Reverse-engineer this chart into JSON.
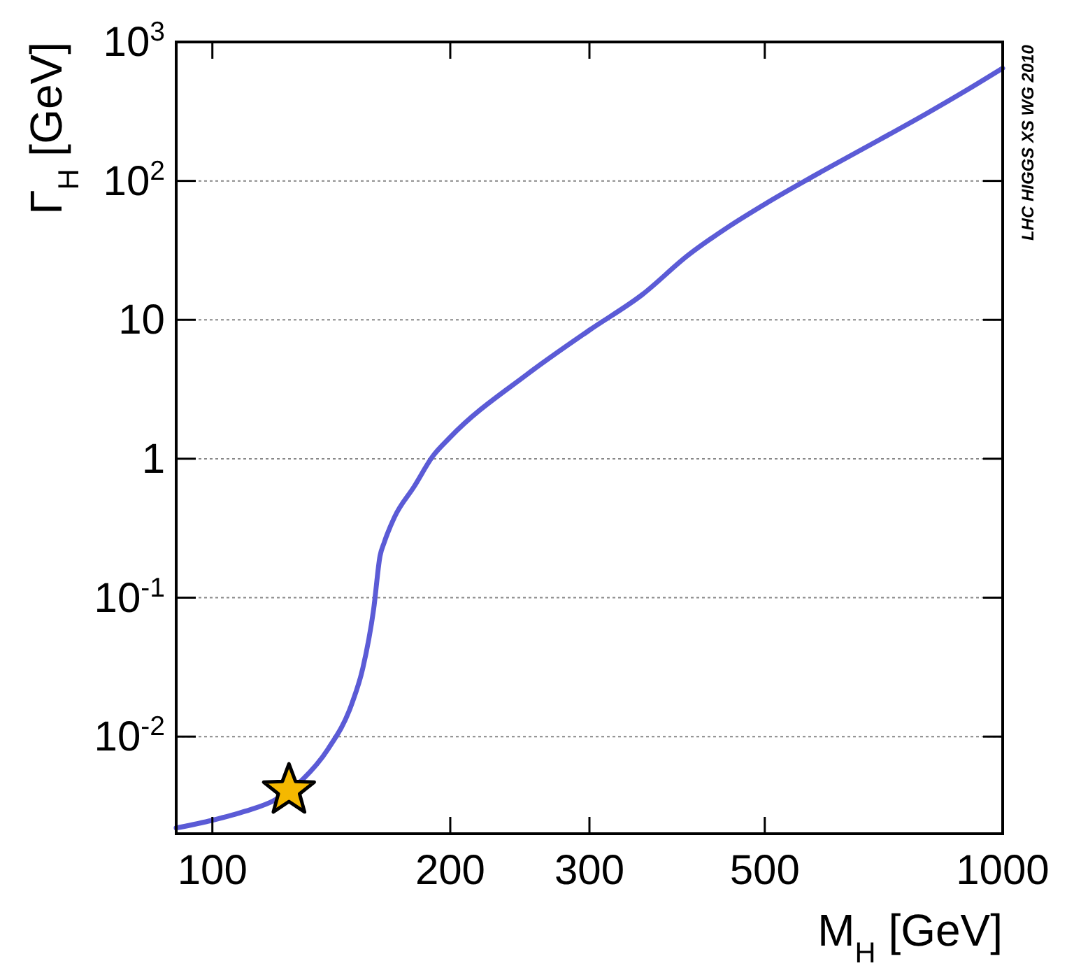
{
  "chart_data": {
    "type": "line",
    "xlabel": "M$_{H}$ [GeV]",
    "ylabel": "Γ$_{H}$ [GeV]",
    "log": "xy",
    "grid": "y",
    "line_style": "solid",
    "xlim": [
      90,
      1000
    ],
    "ylim": [
      0.002,
      1000
    ],
    "xticks": [
      100,
      200,
      300,
      500,
      1000
    ],
    "yticks": [
      {
        "value": 0.01,
        "label": "10$^{-2}$"
      },
      {
        "value": 0.1,
        "label": "10$^{-1}$"
      },
      1,
      10,
      {
        "value": 100,
        "label": "10$^{2}$"
      },
      {
        "value": 1000,
        "label": "10$^{3}$"
      }
    ],
    "annotations": [
      "LHC HIGGS XS WG 2010"
    ],
    "series": [
      {
        "color": "#5b5bd6",
        "x": [
          90,
          100,
          110,
          120,
          130,
          140,
          150,
          155,
          160,
          163,
          165,
          170,
          180,
          190,
          200,
          250,
          300,
          350,
          400,
          450,
          500,
          600,
          700,
          800,
          900,
          1000
        ],
        "values": [
          0.0022,
          0.0025,
          0.0029,
          0.0035,
          0.0049,
          0.0081,
          0.017,
          0.031,
          0.083,
          0.2,
          0.25,
          0.38,
          0.63,
          1.04,
          1.43,
          4.04,
          8.43,
          15.2,
          29.2,
          46.8,
          68,
          123,
          199,
          304,
          449,
          647
        ]
      },
      {
        "type": "scatter",
        "color": "#f5b800",
        "marker": "star",
        "x": [
          125
        ],
        "values": [
          0.0041
        ]
      }
    ]
  }
}
